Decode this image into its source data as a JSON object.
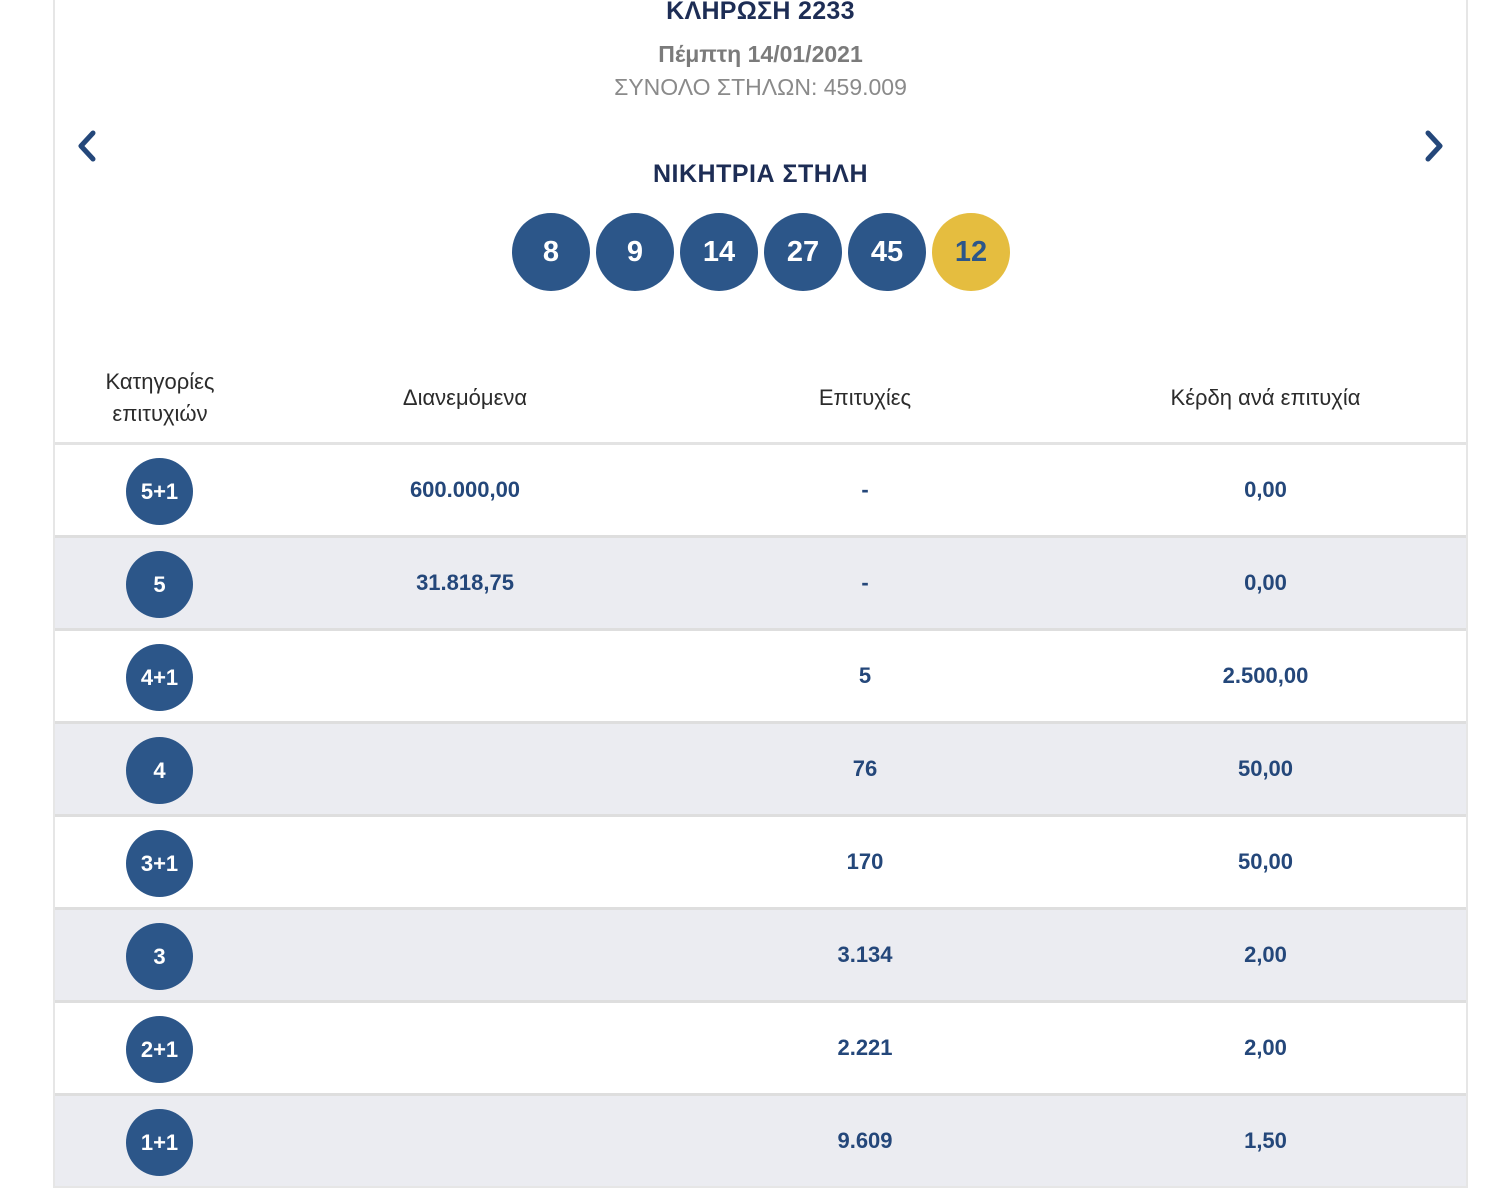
{
  "header": {
    "draw_title": "ΚΛΗΡΩΣΗ 2233",
    "draw_date": "Πέμπτη 14/01/2021",
    "total_columns": "ΣΥΝΟΛΟ ΣΤΗΛΩΝ: 459.009"
  },
  "navigation": {
    "prev_icon": "chevron-left-icon",
    "next_icon": "chevron-right-icon"
  },
  "winning_column": {
    "title": "ΝΙΚΗΤΡΙΑ ΣΤΗΛΗ",
    "numbers": [
      "8",
      "9",
      "14",
      "27",
      "45"
    ],
    "joker": "12"
  },
  "table": {
    "headers": {
      "category_line1": "Κατηγορίες",
      "category_line2": "επιτυχιών",
      "distributed": "Διανεμόμενα",
      "winners": "Επιτυχίες",
      "prize_per_winner": "Κέρδη ανά επιτυχία"
    },
    "rows": [
      {
        "category": "5+1",
        "distributed": "600.000,00",
        "winners": "-",
        "prize": "0,00"
      },
      {
        "category": "5",
        "distributed": "31.818,75",
        "winners": "-",
        "prize": "0,00"
      },
      {
        "category": "4+1",
        "distributed": "",
        "winners": "5",
        "prize": "2.500,00"
      },
      {
        "category": "4",
        "distributed": "",
        "winners": "76",
        "prize": "50,00"
      },
      {
        "category": "3+1",
        "distributed": "",
        "winners": "170",
        "prize": "50,00"
      },
      {
        "category": "3",
        "distributed": "",
        "winners": "3.134",
        "prize": "2,00"
      },
      {
        "category": "2+1",
        "distributed": "",
        "winners": "2.221",
        "prize": "2,00"
      },
      {
        "category": "1+1",
        "distributed": "",
        "winners": "9.609",
        "prize": "1,50"
      }
    ]
  },
  "colors": {
    "ball_blue": "#2c5689",
    "joker_yellow": "#e5bd3f",
    "title_navy": "#1d2d55",
    "row_alt": "#ebecf1"
  }
}
